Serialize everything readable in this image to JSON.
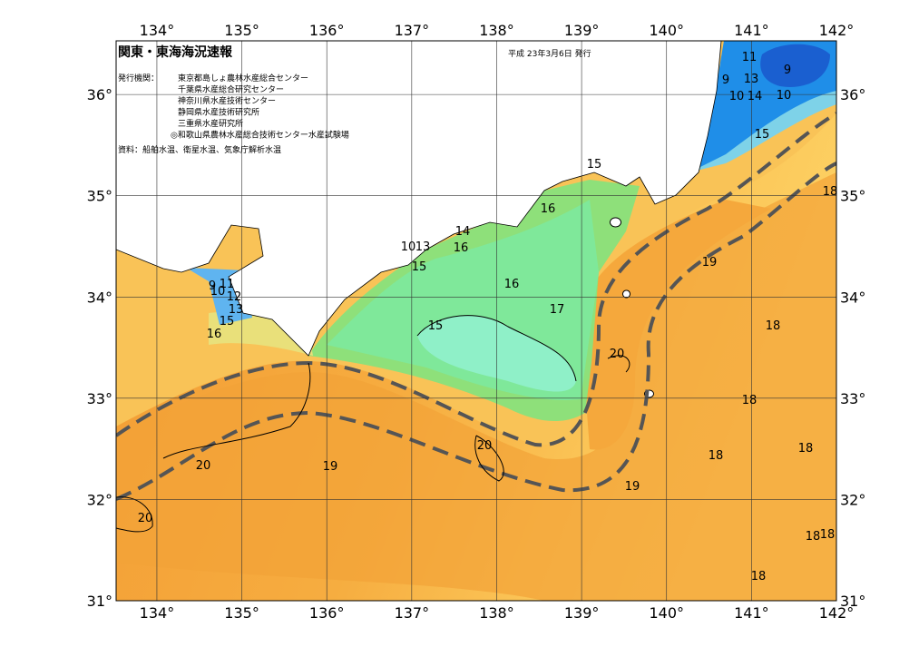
{
  "header": {
    "title": "関東・東海海況速報",
    "date": "平成 23年3月6日 発行",
    "issuer_label": "発行機関：",
    "issuers": [
      "東京都島しょ農林水産総合センター",
      "千葉県水産総合研究センター",
      "神奈川県水産技術センター",
      "静岡県水産技術研究所",
      "三重県水産研究所",
      "◎和歌山県農林水産総合技術センター水産試験場"
    ],
    "source": "資料：船舶水温、衛星水温、気象庁解析水温"
  },
  "map": {
    "lonlim": [
      133.52,
      142
    ],
    "latlim": [
      31,
      36.53
    ],
    "lonticks": [
      {
        "value": 134,
        "label": "134°"
      },
      {
        "value": 135,
        "label": "135°"
      },
      {
        "value": 136,
        "label": "136°"
      },
      {
        "value": 137,
        "label": "137°"
      },
      {
        "value": 138,
        "label": "138°"
      },
      {
        "value": 139,
        "label": "139°"
      },
      {
        "value": 140,
        "label": "140°"
      },
      {
        "value": 141,
        "label": "141°"
      },
      {
        "value": 142,
        "label": "142°"
      }
    ],
    "latticks": [
      {
        "value": 31,
        "label": "31°"
      },
      {
        "value": 32,
        "label": "32°"
      },
      {
        "value": 33,
        "label": "33°"
      },
      {
        "value": 34,
        "label": "34°"
      },
      {
        "value": 35,
        "label": "35°"
      },
      {
        "value": 36,
        "label": "36°"
      }
    ],
    "contour_labels": [
      11,
      9,
      9,
      13,
      10,
      14,
      10,
      15,
      15,
      16,
      14,
      16,
      10,
      13,
      15,
      16,
      17,
      15,
      19,
      18,
      18,
      20,
      18,
      9,
      11,
      10,
      12,
      13,
      15,
      16,
      20,
      20,
      19,
      18,
      18,
      19,
      20,
      18,
      18,
      18
    ]
  }
}
